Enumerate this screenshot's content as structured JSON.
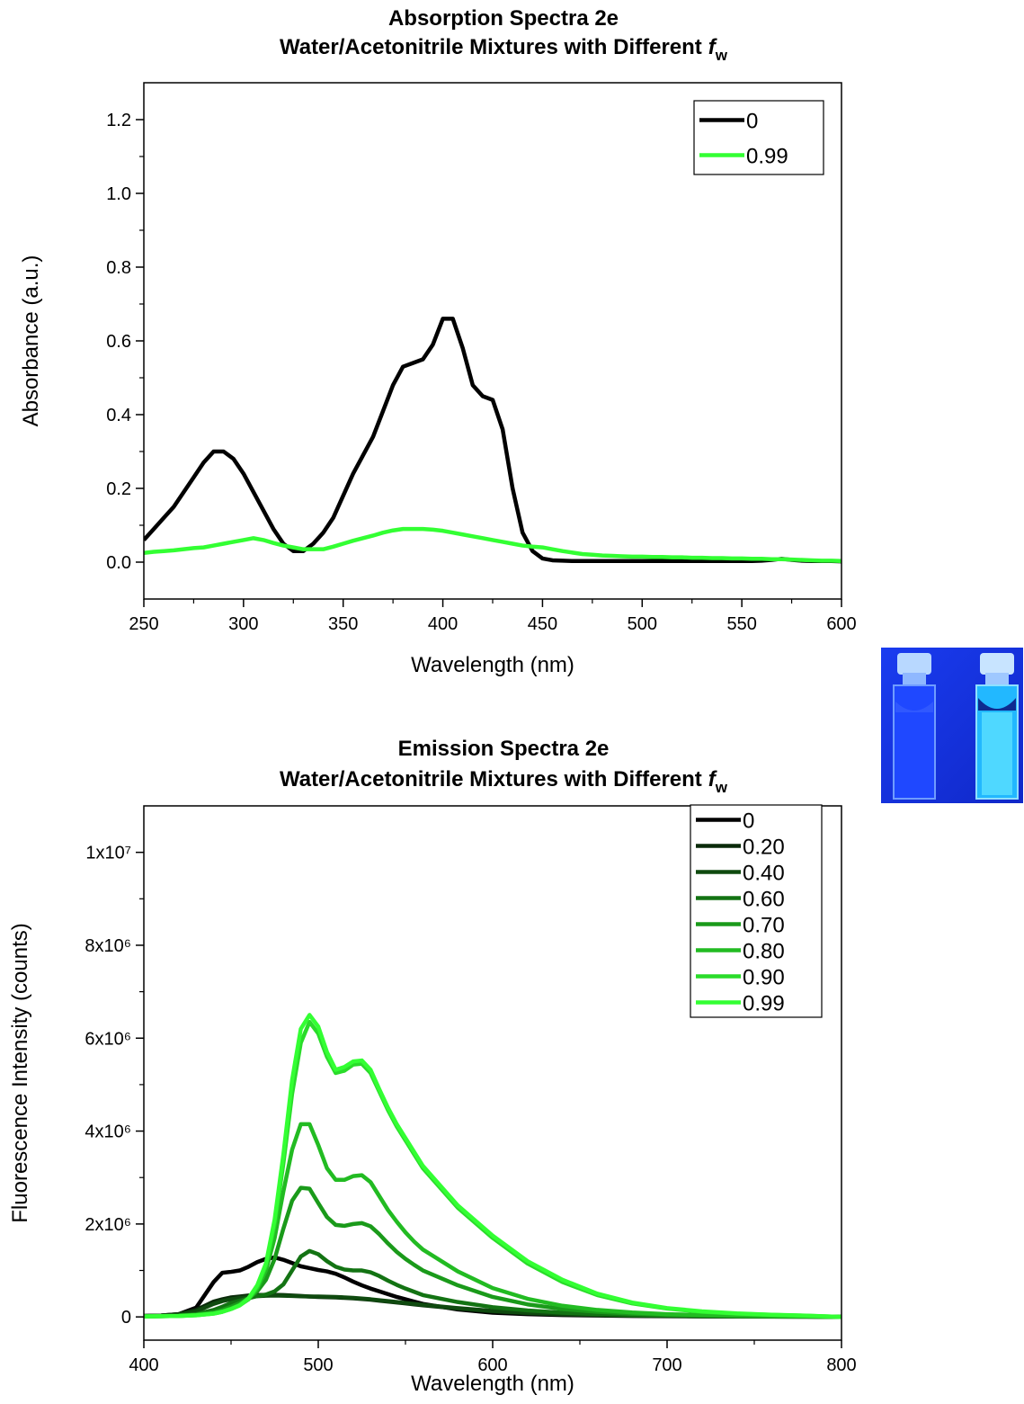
{
  "chart_data": [
    {
      "type": "line",
      "title": "Absorption Spectra 2e",
      "subtitle": "Water/Acetonitrile Mixtures with Different",
      "subtitle_symbol": "f",
      "subtitle_subscript": "w",
      "xlabel": "Wavelength (nm)",
      "ylabel": "Absorbance (a.u.)",
      "xlim": [
        250,
        600
      ],
      "ylim": [
        -0.1,
        1.3
      ],
      "xticks": [
        250,
        300,
        350,
        400,
        450,
        500,
        550,
        600
      ],
      "yticks": [
        {
          "value": 0,
          "label": "0.0"
        },
        0.2,
        0.4,
        0.6,
        0.8,
        {
          "value": 1,
          "label": "1.0"
        },
        1.2
      ],
      "minor_ticks": true,
      "legend": "upper right",
      "x": [
        250,
        255,
        260,
        265,
        270,
        275,
        280,
        285,
        290,
        295,
        300,
        305,
        310,
        315,
        320,
        325,
        330,
        335,
        340,
        345,
        350,
        355,
        360,
        365,
        370,
        375,
        380,
        385,
        390,
        395,
        400,
        405,
        410,
        415,
        420,
        425,
        430,
        435,
        440,
        445,
        450,
        455,
        460,
        465,
        470,
        475,
        480,
        485,
        490,
        495,
        500,
        505,
        510,
        515,
        520,
        525,
        530,
        535,
        540,
        545,
        550,
        555,
        560,
        565,
        570,
        575,
        580,
        585,
        590,
        595,
        600
      ],
      "series": [
        {
          "name": "0",
          "color": "#000000",
          "values": [
            0.06,
            0.09,
            0.12,
            0.15,
            0.19,
            0.23,
            0.27,
            0.3,
            0.3,
            0.28,
            0.24,
            0.19,
            0.14,
            0.09,
            0.05,
            0.03,
            0.03,
            0.05,
            0.08,
            0.12,
            0.18,
            0.24,
            0.29,
            0.34,
            0.41,
            0.48,
            0.53,
            0.54,
            0.55,
            0.59,
            0.66,
            0.66,
            0.58,
            0.48,
            0.45,
            0.44,
            0.36,
            0.2,
            0.08,
            0.03,
            0.01,
            0.005,
            0.004,
            0.003,
            0.003,
            0.003,
            0.003,
            0.003,
            0.003,
            0.003,
            0.003,
            0.003,
            0.003,
            0.003,
            0.003,
            0.003,
            0.003,
            0.003,
            0.003,
            0.003,
            0.003,
            0.003,
            0.004,
            0.006,
            0.009,
            0.006,
            0.004,
            0.003,
            0.003,
            0.003,
            0.002
          ]
        },
        {
          "name": "0.99",
          "color": "#33ff33",
          "values": [
            0.025,
            0.028,
            0.03,
            0.032,
            0.035,
            0.038,
            0.04,
            0.045,
            0.05,
            0.055,
            0.06,
            0.065,
            0.06,
            0.052,
            0.045,
            0.04,
            0.035,
            0.035,
            0.035,
            0.042,
            0.05,
            0.058,
            0.065,
            0.072,
            0.08,
            0.086,
            0.09,
            0.09,
            0.09,
            0.088,
            0.085,
            0.08,
            0.075,
            0.07,
            0.065,
            0.06,
            0.055,
            0.05,
            0.045,
            0.042,
            0.04,
            0.035,
            0.03,
            0.026,
            0.022,
            0.02,
            0.018,
            0.017,
            0.016,
            0.015,
            0.015,
            0.014,
            0.014,
            0.013,
            0.013,
            0.012,
            0.012,
            0.011,
            0.011,
            0.01,
            0.01,
            0.009,
            0.009,
            0.008,
            0.008,
            0.007,
            0.006,
            0.005,
            0.004,
            0.004,
            0.003
          ]
        }
      ]
    },
    {
      "type": "line",
      "title": "Emission Spectra 2e",
      "subtitle": "Water/Acetonitrile Mixtures with Different",
      "subtitle_symbol": "f",
      "subtitle_subscript": "w",
      "xlabel": "Wavelength (nm)",
      "ylabel": "Fluorescence Intensity (counts)",
      "xlim": [
        400,
        800
      ],
      "ylim": [
        -500000,
        11000000
      ],
      "xticks": [
        400,
        500,
        600,
        700,
        800
      ],
      "yticks": [
        0,
        {
          "value": 2000000,
          "label": "2x10⁶"
        },
        {
          "value": 4000000,
          "label": "4x10⁶"
        },
        {
          "value": 6000000,
          "label": "6x10⁶"
        },
        {
          "value": 8000000,
          "label": "8x10⁶"
        },
        {
          "value": 10000000,
          "label": "1x10⁷"
        }
      ],
      "minor_ticks": true,
      "legend": "upper right",
      "x": [
        400,
        410,
        420,
        430,
        440,
        445,
        450,
        455,
        460,
        465,
        470,
        475,
        480,
        485,
        490,
        495,
        500,
        505,
        510,
        515,
        520,
        525,
        530,
        535,
        540,
        545,
        550,
        555,
        560,
        580,
        600,
        620,
        640,
        660,
        680,
        700,
        720,
        740,
        760,
        780,
        800
      ],
      "series": [
        {
          "name": "0",
          "color": "#000000",
          "values": [
            20000,
            30000,
            60000,
            200000,
            750000,
            950000,
            970000,
            1000000,
            1080000,
            1180000,
            1250000,
            1280000,
            1230000,
            1160000,
            1090000,
            1050000,
            1010000,
            980000,
            930000,
            850000,
            760000,
            680000,
            610000,
            550000,
            490000,
            430000,
            380000,
            330000,
            280000,
            160000,
            90000,
            60000,
            40000,
            30000,
            20000,
            15000,
            10000,
            8000,
            5000,
            5000,
            0
          ]
        },
        {
          "name": "0.20",
          "color": "#0a2a0a",
          "values": [
            20000,
            30000,
            60000,
            150000,
            330000,
            380000,
            420000,
            440000,
            460000,
            470000,
            475000,
            475000,
            470000,
            460000,
            450000,
            440000,
            430000,
            425000,
            420000,
            410000,
            400000,
            385000,
            370000,
            350000,
            330000,
            310000,
            290000,
            270000,
            250000,
            180000,
            120000,
            80000,
            55000,
            40000,
            30000,
            20000,
            15000,
            10000,
            8000,
            5000,
            0
          ]
        },
        {
          "name": "0.40",
          "color": "#0f4a0f",
          "values": [
            20000,
            30000,
            50000,
            120000,
            280000,
            340000,
            380000,
            410000,
            430000,
            445000,
            455000,
            460000,
            455000,
            450000,
            445000,
            440000,
            440000,
            435000,
            430000,
            420000,
            410000,
            395000,
            380000,
            360000,
            340000,
            320000,
            300000,
            280000,
            260000,
            190000,
            130000,
            85000,
            60000,
            45000,
            30000,
            22000,
            15000,
            10000,
            8000,
            5000,
            0
          ]
        },
        {
          "name": "0.60",
          "color": "#137313",
          "values": [
            10000,
            20000,
            30000,
            60000,
            150000,
            220000,
            300000,
            350000,
            400000,
            450000,
            480000,
            550000,
            700000,
            1000000,
            1300000,
            1420000,
            1350000,
            1200000,
            1080000,
            1020000,
            1000000,
            1000000,
            960000,
            880000,
            780000,
            690000,
            610000,
            540000,
            470000,
            320000,
            210000,
            140000,
            90000,
            60000,
            40000,
            30000,
            20000,
            15000,
            10000,
            8000,
            0
          ]
        },
        {
          "name": "0.70",
          "color": "#1a9a1a",
          "values": [
            10000,
            15000,
            25000,
            50000,
            100000,
            150000,
            220000,
            300000,
            400000,
            550000,
            800000,
            1250000,
            1900000,
            2500000,
            2780000,
            2760000,
            2450000,
            2150000,
            1980000,
            1960000,
            2000000,
            2020000,
            1950000,
            1780000,
            1580000,
            1400000,
            1250000,
            1120000,
            1000000,
            680000,
            430000,
            270000,
            170000,
            110000,
            70000,
            45000,
            30000,
            20000,
            15000,
            10000,
            0
          ]
        },
        {
          "name": "0.80",
          "color": "#22bb22",
          "values": [
            10000,
            15000,
            20000,
            40000,
            80000,
            120000,
            180000,
            260000,
            380000,
            600000,
            1000000,
            1700000,
            2700000,
            3600000,
            4150000,
            4150000,
            3700000,
            3200000,
            2950000,
            2950000,
            3030000,
            3050000,
            2900000,
            2600000,
            2300000,
            2050000,
            1820000,
            1620000,
            1450000,
            980000,
            620000,
            390000,
            240000,
            150000,
            95000,
            60000,
            40000,
            25000,
            15000,
            10000,
            0
          ]
        },
        {
          "name": "0.90",
          "color": "#2adc2a",
          "values": [
            10000,
            15000,
            20000,
            35000,
            70000,
            110000,
            170000,
            250000,
            380000,
            640000,
            1100000,
            2000000,
            3300000,
            4800000,
            5900000,
            6350000,
            6100000,
            5600000,
            5250000,
            5300000,
            5430000,
            5450000,
            5250000,
            4850000,
            4450000,
            4100000,
            3800000,
            3500000,
            3200000,
            2350000,
            1700000,
            1150000,
            750000,
            470000,
            290000,
            180000,
            110000,
            70000,
            45000,
            25000,
            0
          ]
        },
        {
          "name": "0.99",
          "color": "#33ff33",
          "values": [
            10000,
            15000,
            20000,
            35000,
            70000,
            110000,
            170000,
            250000,
            400000,
            680000,
            1150000,
            2100000,
            3500000,
            5100000,
            6200000,
            6500000,
            6250000,
            5700000,
            5320000,
            5380000,
            5500000,
            5520000,
            5320000,
            4900000,
            4500000,
            4150000,
            3850000,
            3550000,
            3250000,
            2400000,
            1750000,
            1200000,
            800000,
            500000,
            310000,
            190000,
            120000,
            75000,
            48000,
            28000,
            0
          ]
        }
      ]
    }
  ]
}
